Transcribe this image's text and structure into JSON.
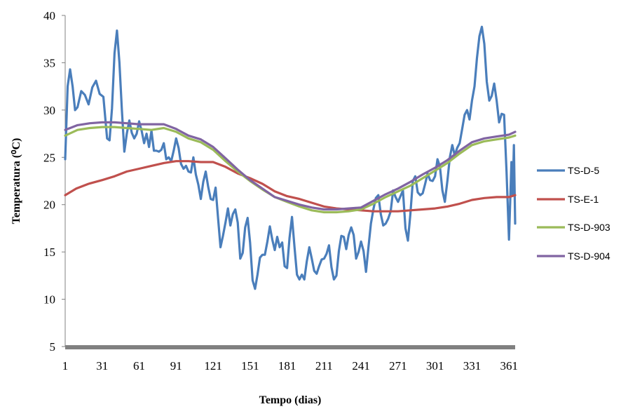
{
  "chart_data": {
    "type": "line",
    "xlabel": "Tempo (dias)",
    "ylabel": "Temperatura (⁰C)",
    "xlim": [
      1,
      366
    ],
    "ylim": [
      5,
      40
    ],
    "x_ticks": [
      1,
      31,
      61,
      91,
      121,
      151,
      181,
      211,
      241,
      271,
      301,
      331,
      361
    ],
    "y_ticks": [
      5,
      10,
      15,
      20,
      25,
      30,
      35,
      40
    ],
    "legend_position": "right",
    "grid": false,
    "series": [
      {
        "name": "TS-D-5",
        "color": "#4a7ebb",
        "points": [
          [
            1,
            24.8
          ],
          [
            3,
            32.5
          ],
          [
            5,
            34.3
          ],
          [
            7,
            32.5
          ],
          [
            9,
            30.0
          ],
          [
            11,
            30.3
          ],
          [
            14,
            32.0
          ],
          [
            17,
            31.6
          ],
          [
            20,
            30.6
          ],
          [
            23,
            32.4
          ],
          [
            26,
            33.1
          ],
          [
            29,
            31.7
          ],
          [
            32,
            31.4
          ],
          [
            35,
            27.0
          ],
          [
            37,
            26.8
          ],
          [
            39,
            30.2
          ],
          [
            41,
            36.0
          ],
          [
            43,
            38.4
          ],
          [
            45,
            35.0
          ],
          [
            47,
            30.0
          ],
          [
            49,
            25.6
          ],
          [
            51,
            27.5
          ],
          [
            53,
            28.9
          ],
          [
            55,
            27.6
          ],
          [
            57,
            27.0
          ],
          [
            59,
            27.5
          ],
          [
            61,
            28.8
          ],
          [
            63,
            27.8
          ],
          [
            65,
            26.5
          ],
          [
            67,
            27.5
          ],
          [
            69,
            26.1
          ],
          [
            71,
            27.8
          ],
          [
            73,
            25.7
          ],
          [
            75,
            25.7
          ],
          [
            77,
            25.6
          ],
          [
            79,
            25.8
          ],
          [
            81,
            26.5
          ],
          [
            83,
            24.8
          ],
          [
            85,
            25.0
          ],
          [
            87,
            24.6
          ],
          [
            89,
            25.7
          ],
          [
            91,
            27.0
          ],
          [
            93,
            26.0
          ],
          [
            95,
            24.3
          ],
          [
            97,
            23.8
          ],
          [
            99,
            24.1
          ],
          [
            101,
            23.5
          ],
          [
            103,
            23.4
          ],
          [
            105,
            25.0
          ],
          [
            107,
            23.2
          ],
          [
            109,
            22.1
          ],
          [
            111,
            20.6
          ],
          [
            113,
            22.4
          ],
          [
            115,
            23.5
          ],
          [
            117,
            21.9
          ],
          [
            119,
            20.6
          ],
          [
            121,
            20.5
          ],
          [
            123,
            21.8
          ],
          [
            125,
            18.6
          ],
          [
            127,
            15.5
          ],
          [
            129,
            16.7
          ],
          [
            131,
            18.1
          ],
          [
            133,
            19.6
          ],
          [
            135,
            17.8
          ],
          [
            137,
            19.0
          ],
          [
            139,
            19.5
          ],
          [
            141,
            18.1
          ],
          [
            143,
            14.3
          ],
          [
            145,
            14.9
          ],
          [
            147,
            17.6
          ],
          [
            149,
            18.6
          ],
          [
            151,
            16.0
          ],
          [
            153,
            12.0
          ],
          [
            155,
            11.1
          ],
          [
            157,
            12.6
          ],
          [
            159,
            14.4
          ],
          [
            161,
            14.7
          ],
          [
            163,
            14.7
          ],
          [
            165,
            16.1
          ],
          [
            167,
            17.7
          ],
          [
            169,
            16.3
          ],
          [
            171,
            15.2
          ],
          [
            173,
            16.6
          ],
          [
            175,
            15.5
          ],
          [
            177,
            16.0
          ],
          [
            179,
            13.5
          ],
          [
            181,
            13.3
          ],
          [
            183,
            16.5
          ],
          [
            185,
            18.7
          ],
          [
            187,
            15.5
          ],
          [
            189,
            12.6
          ],
          [
            191,
            12.1
          ],
          [
            193,
            12.6
          ],
          [
            195,
            12.1
          ],
          [
            197,
            14.0
          ],
          [
            199,
            15.5
          ],
          [
            201,
            14.3
          ],
          [
            203,
            13.0
          ],
          [
            205,
            12.7
          ],
          [
            207,
            13.5
          ],
          [
            209,
            14.2
          ],
          [
            211,
            14.3
          ],
          [
            213,
            14.8
          ],
          [
            215,
            15.7
          ],
          [
            217,
            13.4
          ],
          [
            219,
            12.1
          ],
          [
            221,
            12.5
          ],
          [
            223,
            15.1
          ],
          [
            225,
            16.7
          ],
          [
            227,
            16.6
          ],
          [
            229,
            15.3
          ],
          [
            231,
            16.8
          ],
          [
            233,
            17.6
          ],
          [
            235,
            16.8
          ],
          [
            237,
            14.3
          ],
          [
            239,
            15.0
          ],
          [
            241,
            16.1
          ],
          [
            243,
            15.1
          ],
          [
            245,
            12.9
          ],
          [
            247,
            15.5
          ],
          [
            249,
            18.0
          ],
          [
            251,
            19.5
          ],
          [
            253,
            20.7
          ],
          [
            255,
            21.0
          ],
          [
            257,
            19.0
          ],
          [
            259,
            17.8
          ],
          [
            261,
            18.0
          ],
          [
            263,
            18.5
          ],
          [
            265,
            19.3
          ],
          [
            267,
            21.5
          ],
          [
            269,
            20.8
          ],
          [
            271,
            20.3
          ],
          [
            273,
            20.9
          ],
          [
            275,
            21.5
          ],
          [
            277,
            17.5
          ],
          [
            279,
            16.2
          ],
          [
            281,
            19.0
          ],
          [
            283,
            22.5
          ],
          [
            285,
            23.0
          ],
          [
            287,
            21.3
          ],
          [
            289,
            21.0
          ],
          [
            291,
            21.2
          ],
          [
            293,
            22.2
          ],
          [
            295,
            23.3
          ],
          [
            297,
            22.6
          ],
          [
            299,
            22.5
          ],
          [
            301,
            23.0
          ],
          [
            303,
            24.8
          ],
          [
            305,
            24.0
          ],
          [
            307,
            21.5
          ],
          [
            309,
            20.3
          ],
          [
            311,
            22.5
          ],
          [
            313,
            25.0
          ],
          [
            315,
            26.3
          ],
          [
            317,
            25.2
          ],
          [
            319,
            26.0
          ],
          [
            321,
            26.5
          ],
          [
            323,
            28.0
          ],
          [
            325,
            29.5
          ],
          [
            327,
            30.0
          ],
          [
            329,
            29.0
          ],
          [
            331,
            31.0
          ],
          [
            333,
            32.5
          ],
          [
            335,
            35.5
          ],
          [
            337,
            37.8
          ],
          [
            339,
            38.8
          ],
          [
            341,
            37.0
          ],
          [
            343,
            33.0
          ],
          [
            345,
            31.0
          ],
          [
            347,
            31.5
          ],
          [
            349,
            32.8
          ],
          [
            351,
            31.0
          ],
          [
            353,
            28.7
          ],
          [
            355,
            29.6
          ],
          [
            357,
            29.5
          ],
          [
            359,
            23.5
          ],
          [
            361,
            16.3
          ],
          [
            362,
            20.5
          ],
          [
            363,
            24.5
          ],
          [
            364,
            21.0
          ],
          [
            365,
            26.3
          ],
          [
            366,
            18.0
          ]
        ]
      },
      {
        "name": "TS-E-1",
        "color": "#c0504d",
        "points": [
          [
            1,
            21.0
          ],
          [
            10,
            21.7
          ],
          [
            20,
            22.2
          ],
          [
            31,
            22.6
          ],
          [
            41,
            23.0
          ],
          [
            51,
            23.5
          ],
          [
            61,
            23.8
          ],
          [
            71,
            24.1
          ],
          [
            81,
            24.4
          ],
          [
            91,
            24.6
          ],
          [
            101,
            24.6
          ],
          [
            111,
            24.5
          ],
          [
            121,
            24.5
          ],
          [
            131,
            24.0
          ],
          [
            141,
            23.3
          ],
          [
            151,
            22.8
          ],
          [
            161,
            22.2
          ],
          [
            171,
            21.4
          ],
          [
            181,
            20.9
          ],
          [
            191,
            20.6
          ],
          [
            201,
            20.2
          ],
          [
            211,
            19.8
          ],
          [
            221,
            19.6
          ],
          [
            231,
            19.5
          ],
          [
            241,
            19.4
          ],
          [
            251,
            19.3
          ],
          [
            261,
            19.3
          ],
          [
            271,
            19.3
          ],
          [
            281,
            19.4
          ],
          [
            291,
            19.5
          ],
          [
            301,
            19.6
          ],
          [
            311,
            19.8
          ],
          [
            321,
            20.1
          ],
          [
            331,
            20.5
          ],
          [
            341,
            20.7
          ],
          [
            351,
            20.8
          ],
          [
            361,
            20.8
          ],
          [
            366,
            21.0
          ]
        ]
      },
      {
        "name": "TS-D-903",
        "color": "#9bbb59",
        "points": [
          [
            1,
            27.3
          ],
          [
            11,
            27.9
          ],
          [
            21,
            28.1
          ],
          [
            31,
            28.2
          ],
          [
            41,
            28.2
          ],
          [
            51,
            28.1
          ],
          [
            61,
            28.0
          ],
          [
            71,
            27.9
          ],
          [
            81,
            28.1
          ],
          [
            91,
            27.7
          ],
          [
            101,
            27.0
          ],
          [
            111,
            26.6
          ],
          [
            121,
            25.8
          ],
          [
            131,
            24.6
          ],
          [
            141,
            23.5
          ],
          [
            151,
            22.5
          ],
          [
            161,
            21.6
          ],
          [
            171,
            20.8
          ],
          [
            181,
            20.3
          ],
          [
            191,
            19.8
          ],
          [
            201,
            19.4
          ],
          [
            211,
            19.2
          ],
          [
            221,
            19.2
          ],
          [
            231,
            19.3
          ],
          [
            241,
            19.5
          ],
          [
            251,
            20.1
          ],
          [
            261,
            20.8
          ],
          [
            271,
            21.4
          ],
          [
            281,
            22.0
          ],
          [
            291,
            22.8
          ],
          [
            301,
            23.6
          ],
          [
            311,
            24.4
          ],
          [
            321,
            25.4
          ],
          [
            331,
            26.3
          ],
          [
            341,
            26.7
          ],
          [
            351,
            26.9
          ],
          [
            361,
            27.1
          ],
          [
            366,
            27.3
          ]
        ]
      },
      {
        "name": "TS-D-904",
        "color": "#8064a2",
        "points": [
          [
            1,
            27.9
          ],
          [
            11,
            28.4
          ],
          [
            21,
            28.6
          ],
          [
            31,
            28.7
          ],
          [
            41,
            28.7
          ],
          [
            51,
            28.6
          ],
          [
            61,
            28.5
          ],
          [
            71,
            28.5
          ],
          [
            81,
            28.5
          ],
          [
            91,
            28.0
          ],
          [
            101,
            27.3
          ],
          [
            111,
            26.9
          ],
          [
            121,
            26.1
          ],
          [
            131,
            24.9
          ],
          [
            141,
            23.7
          ],
          [
            151,
            22.6
          ],
          [
            161,
            21.7
          ],
          [
            171,
            20.8
          ],
          [
            181,
            20.4
          ],
          [
            191,
            20.0
          ],
          [
            201,
            19.7
          ],
          [
            211,
            19.5
          ],
          [
            221,
            19.5
          ],
          [
            231,
            19.6
          ],
          [
            241,
            19.7
          ],
          [
            251,
            20.4
          ],
          [
            261,
            21.1
          ],
          [
            271,
            21.7
          ],
          [
            281,
            22.4
          ],
          [
            291,
            23.2
          ],
          [
            301,
            23.9
          ],
          [
            311,
            24.7
          ],
          [
            321,
            25.7
          ],
          [
            331,
            26.6
          ],
          [
            341,
            27.0
          ],
          [
            351,
            27.2
          ],
          [
            361,
            27.4
          ],
          [
            366,
            27.7
          ]
        ]
      }
    ]
  }
}
